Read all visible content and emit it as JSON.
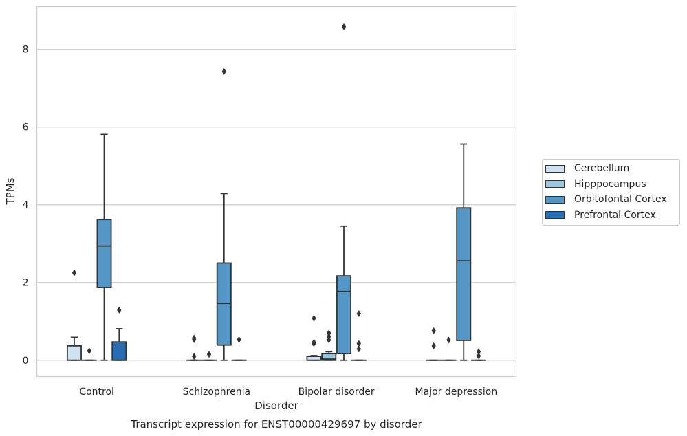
{
  "chart_data": {
    "type": "box",
    "title": "Transcript expression for ENST00000429697 by disorder",
    "xlabel": "Disorder",
    "ylabel": "TPMs",
    "ylim": [
      -0.42,
      9.1
    ],
    "yticks": [
      0,
      2,
      4,
      6,
      8
    ],
    "grid": true,
    "legend_position": "right",
    "categories": [
      "Control",
      "Schizophrenia",
      "Bipolar disorder",
      "Major depression"
    ],
    "series": [
      {
        "name": "Cerebellum",
        "color": "#d0e1f2",
        "boxes": [
          {
            "q1": 0,
            "median": 0,
            "q3": 0.37,
            "whisker_low": 0,
            "whisker_high": 0.59,
            "outliers": [
              2.25
            ]
          },
          {
            "q1": 0,
            "median": 0,
            "q3": 0,
            "whisker_low": 0,
            "whisker_high": 0,
            "outliers": [
              0.1,
              0.53,
              0.57
            ]
          },
          {
            "q1": 0,
            "median": 0,
            "q3": 0.1,
            "whisker_low": 0,
            "whisker_high": 0.12,
            "outliers": [
              0.43,
              0.46,
              1.08
            ]
          },
          {
            "q1": 0,
            "median": 0,
            "q3": 0,
            "whisker_low": 0,
            "whisker_high": 0,
            "outliers": [
              0.37,
              0.76
            ]
          }
        ]
      },
      {
        "name": "Hipppocampus",
        "color": "#9ac8e0",
        "boxes": [
          {
            "q1": 0,
            "median": 0,
            "q3": 0,
            "whisker_low": 0,
            "whisker_high": 0,
            "outliers": [
              0.24
            ]
          },
          {
            "q1": 0,
            "median": 0,
            "q3": 0,
            "whisker_low": 0,
            "whisker_high": 0,
            "outliers": [
              0.15
            ]
          },
          {
            "q1": 0,
            "median": 0.03,
            "q3": 0.17,
            "whisker_low": 0,
            "whisker_high": 0.22,
            "outliers": [
              0.52,
              0.61,
              0.7
            ]
          },
          {
            "q1": 0,
            "median": 0,
            "q3": 0,
            "whisker_low": 0,
            "whisker_high": 0,
            "outliers": [
              0.52
            ]
          }
        ]
      },
      {
        "name": "Orbitofontal Cortex",
        "color": "#5496c6",
        "boxes": [
          {
            "q1": 1.87,
            "median": 2.94,
            "q3": 3.62,
            "whisker_low": 0,
            "whisker_high": 5.81,
            "outliers": []
          },
          {
            "q1": 0.39,
            "median": 1.46,
            "q3": 2.5,
            "whisker_low": 0,
            "whisker_high": 4.29,
            "outliers": [
              7.43
            ]
          },
          {
            "q1": 0.17,
            "median": 1.77,
            "q3": 2.17,
            "whisker_low": 0,
            "whisker_high": 3.45,
            "outliers": [
              8.58
            ]
          },
          {
            "q1": 0.51,
            "median": 2.56,
            "q3": 3.92,
            "whisker_low": 0,
            "whisker_high": 5.56,
            "outliers": []
          }
        ]
      },
      {
        "name": "Prefrontal Cortex",
        "color": "#2a6db0",
        "boxes": [
          {
            "q1": 0,
            "median": 0,
            "q3": 0.47,
            "whisker_low": 0,
            "whisker_high": 0.81,
            "outliers": [
              1.29
            ]
          },
          {
            "q1": 0,
            "median": 0,
            "q3": 0,
            "whisker_low": 0,
            "whisker_high": 0,
            "outliers": [
              0.53
            ]
          },
          {
            "q1": 0,
            "median": 0,
            "q3": 0,
            "whisker_low": 0,
            "whisker_high": 0,
            "outliers": [
              0.29,
              0.43,
              1.2
            ]
          },
          {
            "q1": 0,
            "median": 0,
            "q3": 0,
            "whisker_low": 0,
            "whisker_high": 0,
            "outliers": [
              0.11,
              0.22
            ]
          }
        ]
      }
    ]
  }
}
